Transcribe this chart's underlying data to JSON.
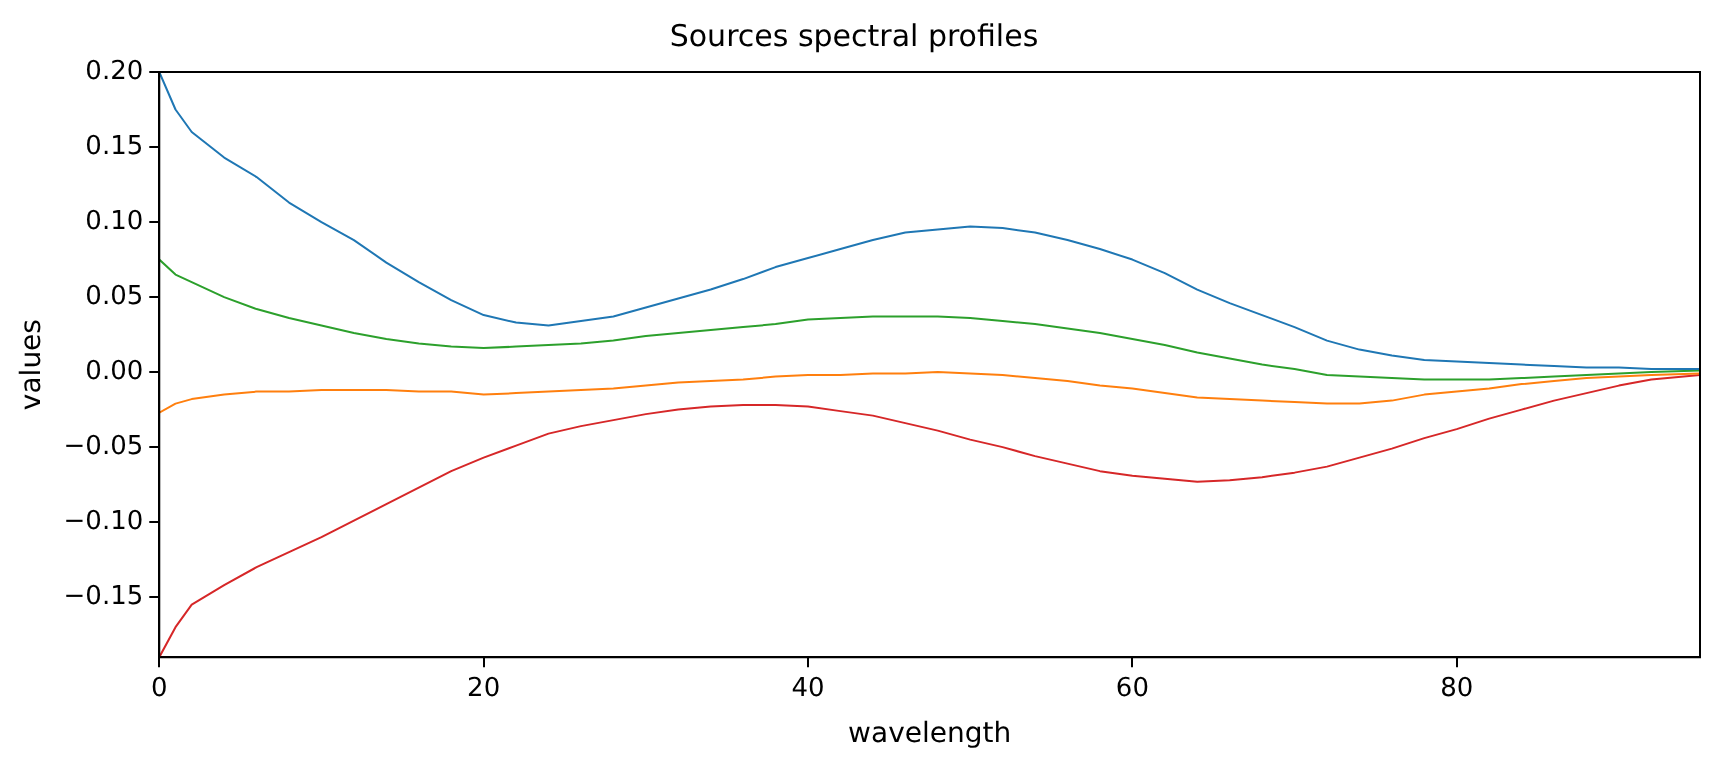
{
  "chart_data": {
    "type": "line",
    "title": "Sources spectral profiles",
    "xlabel": "wavelength",
    "ylabel": "values",
    "x": [
      0,
      1,
      2,
      4,
      6,
      8,
      10,
      12,
      14,
      16,
      18,
      20,
      22,
      24,
      26,
      28,
      30,
      32,
      34,
      36,
      38,
      40,
      42,
      44,
      46,
      48,
      50,
      52,
      54,
      56,
      58,
      60,
      62,
      64,
      66,
      68,
      70,
      72,
      74,
      76,
      78,
      80,
      82,
      84,
      86,
      88,
      90,
      92,
      95
    ],
    "series": [
      {
        "color": "#1f77b4",
        "values": [
          0.2,
          0.175,
          0.16,
          0.143,
          0.13,
          0.113,
          0.1,
          0.088,
          0.073,
          0.06,
          0.048,
          0.038,
          0.033,
          0.031,
          0.034,
          0.037,
          0.043,
          0.049,
          0.055,
          0.062,
          0.07,
          0.076,
          0.082,
          0.088,
          0.093,
          0.095,
          0.097,
          0.096,
          0.093,
          0.088,
          0.082,
          0.075,
          0.066,
          0.055,
          0.046,
          0.038,
          0.03,
          0.021,
          0.015,
          0.011,
          0.008,
          0.007,
          0.006,
          0.005,
          0.004,
          0.003,
          0.003,
          0.002,
          0.002
        ]
      },
      {
        "color": "#ff7f0e",
        "values": [
          -0.027,
          -0.021,
          -0.018,
          -0.015,
          -0.013,
          -0.013,
          -0.012,
          -0.012,
          -0.012,
          -0.013,
          -0.013,
          -0.015,
          -0.014,
          -0.013,
          -0.012,
          -0.011,
          -0.009,
          -0.007,
          -0.006,
          -0.005,
          -0.003,
          -0.002,
          -0.002,
          -0.001,
          -0.001,
          0.0,
          -0.001,
          -0.002,
          -0.004,
          -0.006,
          -0.009,
          -0.011,
          -0.014,
          -0.017,
          -0.018,
          -0.019,
          -0.02,
          -0.021,
          -0.021,
          -0.019,
          -0.015,
          -0.013,
          -0.011,
          -0.008,
          -0.006,
          -0.004,
          -0.003,
          -0.002,
          -0.001
        ]
      },
      {
        "color": "#2ca02c",
        "values": [
          0.075,
          0.065,
          0.06,
          0.05,
          0.042,
          0.036,
          0.031,
          0.026,
          0.022,
          0.019,
          0.017,
          0.016,
          0.017,
          0.018,
          0.019,
          0.021,
          0.024,
          0.026,
          0.028,
          0.03,
          0.032,
          0.035,
          0.036,
          0.037,
          0.037,
          0.037,
          0.036,
          0.034,
          0.032,
          0.029,
          0.026,
          0.022,
          0.018,
          0.013,
          0.009,
          0.005,
          0.002,
          -0.002,
          -0.003,
          -0.004,
          -0.005,
          -0.005,
          -0.005,
          -0.004,
          -0.003,
          -0.002,
          -0.001,
          0.0,
          0.001
        ]
      },
      {
        "color": "#d62728",
        "values": [
          -0.19,
          -0.17,
          -0.155,
          -0.142,
          -0.13,
          -0.12,
          -0.11,
          -0.099,
          -0.088,
          -0.077,
          -0.066,
          -0.057,
          -0.049,
          -0.041,
          -0.036,
          -0.032,
          -0.028,
          -0.025,
          -0.023,
          -0.022,
          -0.022,
          -0.023,
          -0.026,
          -0.029,
          -0.034,
          -0.039,
          -0.045,
          -0.05,
          -0.056,
          -0.061,
          -0.066,
          -0.069,
          -0.071,
          -0.073,
          -0.072,
          -0.07,
          -0.067,
          -0.063,
          -0.057,
          -0.051,
          -0.044,
          -0.038,
          -0.031,
          -0.025,
          -0.019,
          -0.014,
          -0.009,
          -0.005,
          -0.002
        ]
      }
    ],
    "xlim": [
      0,
      95
    ],
    "xticks": [
      0,
      20,
      40,
      60,
      80
    ],
    "ylim": [
      -0.19,
      0.2
    ],
    "yticks": [
      {
        "value": -0.15,
        "label": "−0.15"
      },
      {
        "value": -0.1,
        "label": "−0.10"
      },
      {
        "value": -0.05,
        "label": "−0.05"
      },
      {
        "value": 0,
        "label": "0.00"
      },
      {
        "value": 0.05,
        "label": "0.05"
      },
      {
        "value": 0.1,
        "label": "0.10"
      },
      {
        "value": 0.15,
        "label": "0.15"
      },
      {
        "value": 0.2,
        "label": "0.20"
      }
    ],
    "grid": false,
    "legend": false,
    "marker": "none",
    "line_style": "solid"
  }
}
